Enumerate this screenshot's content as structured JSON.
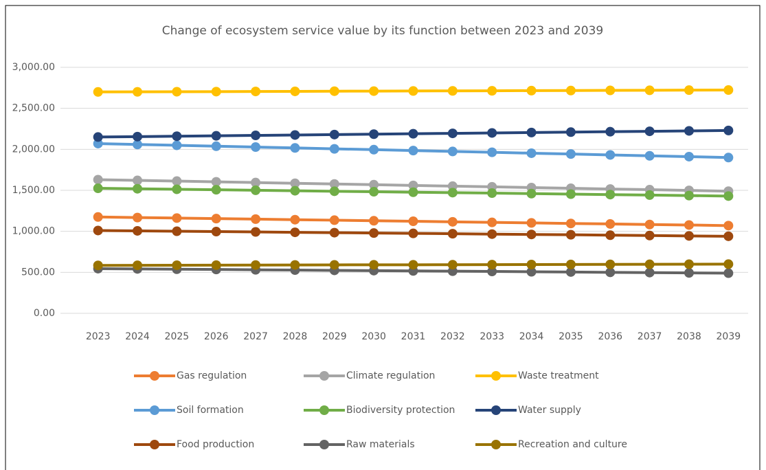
{
  "chart_data": {
    "type": "line",
    "title": "Change of ecosystem service value by its function between 2023 and 2039",
    "categories": [
      "2023",
      "2024",
      "2025",
      "2026",
      "2027",
      "2028",
      "2029",
      "2030",
      "2031",
      "2032",
      "2033",
      "2034",
      "2035",
      "2036",
      "2037",
      "2038",
      "2039"
    ],
    "ylim": [
      0,
      3000
    ],
    "yticks": [
      {
        "value": 0,
        "label": "0.00"
      },
      {
        "value": 500,
        "label": "500.00"
      },
      {
        "value": 1000,
        "label": "1,000.00"
      },
      {
        "value": 1500,
        "label": "1,500.00"
      },
      {
        "value": 2000,
        "label": "2,000.00"
      },
      {
        "value": 2500,
        "label": "2,500.00"
      },
      {
        "value": 3000,
        "label": "3,000.00"
      }
    ],
    "grid": true,
    "legend": "bottom",
    "series": [
      {
        "name": "Gas regulation",
        "color": "#ED7D31",
        "values": [
          1175,
          1168,
          1162,
          1155,
          1149,
          1142,
          1136,
          1129,
          1123,
          1116,
          1109,
          1103,
          1096,
          1090,
          1083,
          1077,
          1070
        ]
      },
      {
        "name": "Climate regulation",
        "color": "#A5A5A5",
        "values": [
          1630,
          1621,
          1613,
          1604,
          1595,
          1586,
          1578,
          1569,
          1560,
          1551,
          1543,
          1534,
          1525,
          1516,
          1508,
          1499,
          1490
        ]
      },
      {
        "name": "Waste treatment",
        "color": "#FFC000",
        "values": [
          2700,
          2701,
          2703,
          2704,
          2706,
          2707,
          2709,
          2710,
          2712,
          2713,
          2714,
          2716,
          2717,
          2719,
          2720,
          2722,
          2723
        ]
      },
      {
        "name": "Soil formation",
        "color": "#5B9BD5",
        "values": [
          2070,
          2059,
          2049,
          2038,
          2028,
          2017,
          2006,
          1996,
          1985,
          1974,
          1964,
          1953,
          1943,
          1932,
          1921,
          1911,
          1900
        ]
      },
      {
        "name": "Biodiversity protection",
        "color": "#70AD47",
        "values": [
          1525,
          1519,
          1513,
          1507,
          1501,
          1495,
          1489,
          1483,
          1477,
          1472,
          1466,
          1460,
          1454,
          1448,
          1442,
          1436,
          1430
        ]
      },
      {
        "name": "Water supply",
        "color": "#264478",
        "values": [
          2150,
          2155,
          2160,
          2165,
          2170,
          2175,
          2180,
          2185,
          2190,
          2195,
          2200,
          2205,
          2210,
          2215,
          2220,
          2225,
          2230
        ]
      },
      {
        "name": "Food production",
        "color": "#9E480E",
        "values": [
          1010,
          1006,
          1001,
          997,
          993,
          988,
          984,
          979,
          975,
          971,
          966,
          962,
          958,
          953,
          949,
          944,
          940
        ]
      },
      {
        "name": "Raw materials",
        "color": "#636363",
        "values": [
          545,
          542,
          538,
          535,
          531,
          528,
          524,
          521,
          517,
          514,
          511,
          507,
          504,
          500,
          497,
          493,
          490
        ]
      },
      {
        "name": "Recreation and culture",
        "color": "#997300",
        "values": [
          585,
          586,
          587,
          588,
          589,
          590,
          591,
          592,
          592,
          593,
          594,
          595,
          596,
          597,
          598,
          599,
          600
        ]
      }
    ]
  }
}
